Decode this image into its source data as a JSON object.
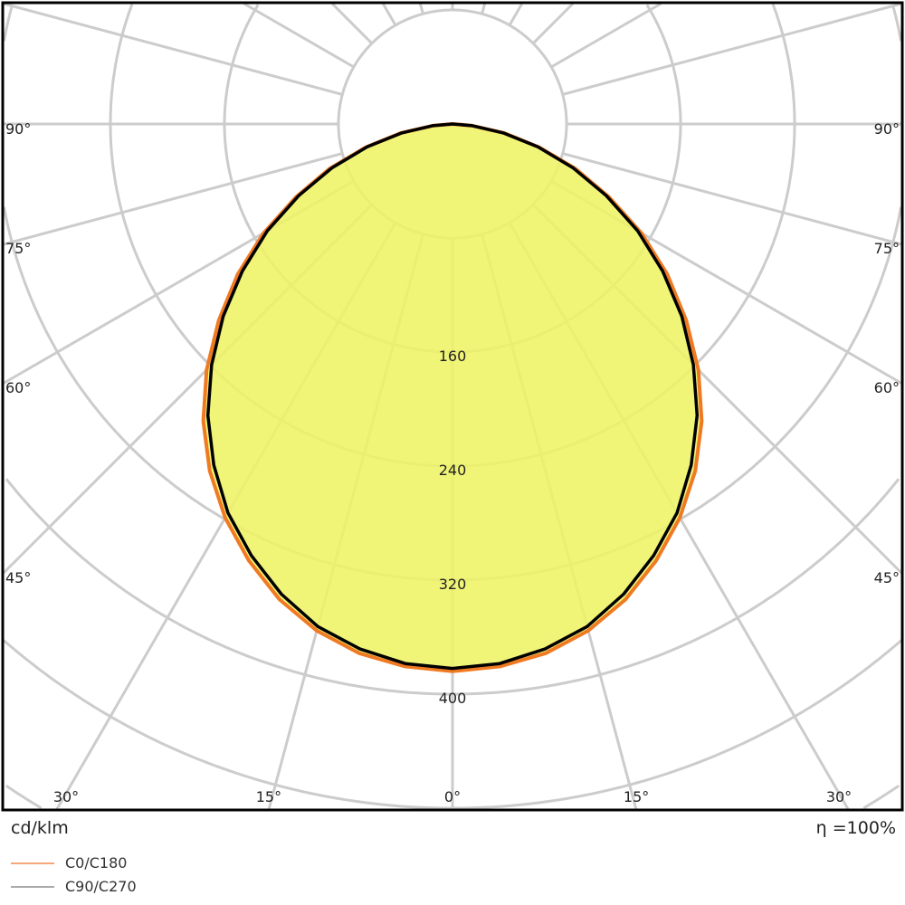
{
  "chart_data": {
    "type": "polar-line",
    "unit_label": "cd/klm",
    "efficiency_label": "η =100%",
    "radial_ticks": [
      160,
      240,
      320,
      400
    ],
    "radial_grid_step": 80,
    "angle_grid_step_deg": 15,
    "angle_labels_left": [
      {
        "angle": 90,
        "text": "90°"
      },
      {
        "angle": 75,
        "text": "75°"
      },
      {
        "angle": 60,
        "text": "60°"
      },
      {
        "angle": 45,
        "text": "45°"
      }
    ],
    "angle_labels_right": [
      {
        "angle": 90,
        "text": "90°"
      },
      {
        "angle": 75,
        "text": "75°"
      },
      {
        "angle": 60,
        "text": "60°"
      },
      {
        "angle": 45,
        "text": "45°"
      }
    ],
    "angle_labels_bottom": [
      {
        "angle": -30,
        "text": "30°"
      },
      {
        "angle": -15,
        "text": "15°"
      },
      {
        "angle": 0,
        "text": "0°"
      },
      {
        "angle": 15,
        "text": "15°"
      },
      {
        "angle": 30,
        "text": "30°"
      }
    ],
    "angles_deg": [
      0,
      5,
      10,
      15,
      20,
      25,
      30,
      35,
      40,
      45,
      50,
      55,
      60,
      65,
      70,
      75,
      80,
      85,
      90
    ],
    "series": [
      {
        "name": "C0/C180",
        "color": "#f07a22",
        "legend_color": "#f5a77a",
        "values": [
          384,
          382,
          377,
          368,
          355,
          338,
          319,
          297,
          272,
          244,
          214,
          184,
          153,
          121,
          92,
          63,
          37,
          14,
          0
        ]
      },
      {
        "name": "C90/C270",
        "color": "#000000",
        "legend_color": "#aaaaaa",
        "values": [
          382,
          380,
          374,
          365,
          351,
          334,
          315,
          292,
          267,
          239,
          210,
          180,
          150,
          119,
          90,
          62,
          36,
          14,
          0
        ]
      }
    ],
    "fill_color": "#eef264",
    "grid_color": "#cccccc"
  }
}
